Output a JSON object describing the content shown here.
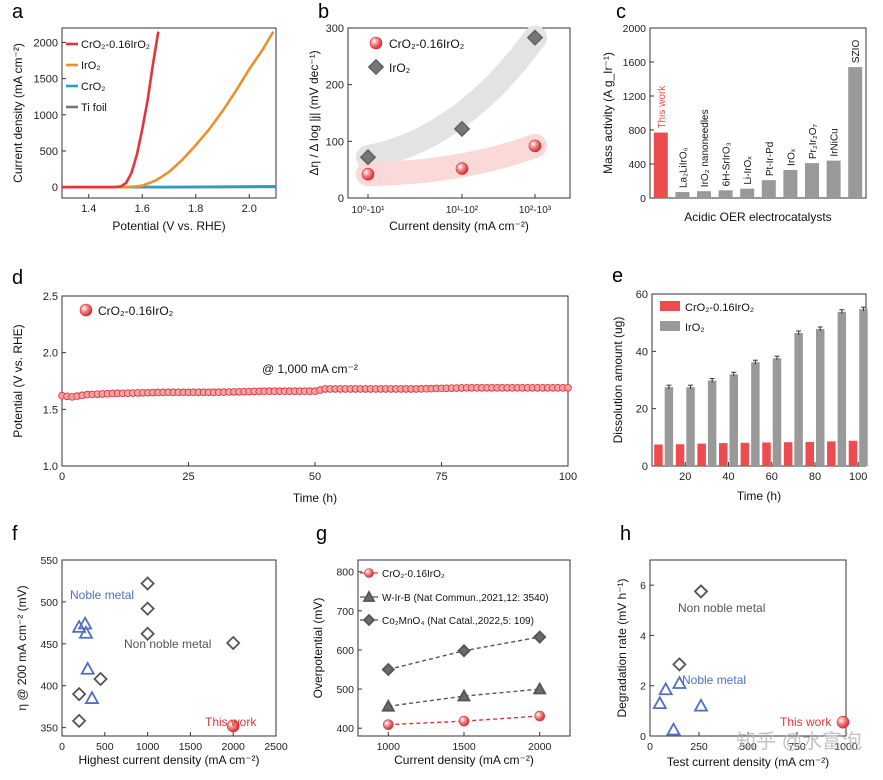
{
  "panels": {
    "a": {
      "letter": "a"
    },
    "b": {
      "letter": "b"
    },
    "c": {
      "letter": "c"
    },
    "d": {
      "letter": "d"
    },
    "e": {
      "letter": "e"
    },
    "f": {
      "letter": "f"
    },
    "g": {
      "letter": "g"
    },
    "h": {
      "letter": "h"
    }
  },
  "watermark": "知乎 @水富泡",
  "chart_data": [
    {
      "id": "a",
      "type": "line",
      "xlabel": "Potential (V vs. RHE)",
      "ylabel": "Current density (mA cm⁻²)",
      "xlim": [
        1.3,
        2.1
      ],
      "ylim": [
        -150,
        2200
      ],
      "xticks": [
        1.4,
        1.6,
        1.8,
        2.0
      ],
      "yticks": [
        0,
        500,
        1000,
        1500,
        2000
      ],
      "legend_position": "top-left",
      "series": [
        {
          "name": "CrO₂-0.16IrO₂",
          "color": "#e0353b",
          "x": [
            1.3,
            1.5,
            1.52,
            1.54,
            1.56,
            1.58,
            1.6,
            1.62,
            1.64,
            1.66
          ],
          "y": [
            0,
            0,
            10,
            60,
            200,
            450,
            800,
            1200,
            1700,
            2150
          ]
        },
        {
          "name": "IrO₂",
          "color": "#e8922e",
          "x": [
            1.3,
            1.55,
            1.6,
            1.65,
            1.7,
            1.75,
            1.8,
            1.85,
            1.9,
            1.95,
            2.0,
            2.05,
            2.09
          ],
          "y": [
            0,
            0,
            20,
            90,
            210,
            380,
            580,
            800,
            1050,
            1330,
            1630,
            1900,
            2150
          ]
        },
        {
          "name": "CrO₂",
          "color": "#2a9fc4",
          "x": [
            1.3,
            1.7,
            2.1
          ],
          "y": [
            0,
            2,
            12
          ]
        },
        {
          "name": "Ti foil",
          "color": "#777777",
          "x": [
            1.3,
            1.7,
            2.1
          ],
          "y": [
            0,
            0,
            4
          ]
        }
      ]
    },
    {
      "id": "b",
      "type": "scatter",
      "xlabel": "Current density (mA cm⁻²)",
      "ylabel": "Δη / Δ log |j| (mV dec⁻¹)",
      "categories": [
        "10⁰-10¹",
        "10¹-10²",
        "10²-10³"
      ],
      "ylim": [
        0,
        300
      ],
      "yticks": [
        0,
        100,
        200,
        300
      ],
      "legend_position": "top-left",
      "series": [
        {
          "name": "CrO₂-0.16IrO₂",
          "marker": "circle",
          "color": "#e0353b",
          "values": [
            42,
            52,
            92
          ]
        },
        {
          "name": "IrO₂",
          "marker": "diamond",
          "color": "#777777",
          "values": [
            72,
            122,
            283
          ]
        }
      ]
    },
    {
      "id": "c",
      "type": "bar",
      "xlabel": "Acidic OER electrocatalysts",
      "ylabel": "Mass activity (A g_Ir⁻¹)",
      "ylim": [
        0,
        2000
      ],
      "yticks": [
        0,
        400,
        800,
        1200,
        1600,
        2000
      ],
      "categories": [
        "This work",
        "La₂LiIrO₆",
        "IrO₂ nanoneedles",
        "6H-SrIrO₃",
        "Li-IrOₓ",
        "Pt-Ir-Pd",
        "IrOₓ",
        "Pr₂Ir₂O₇",
        "IrNiCu",
        "SZIO"
      ],
      "values": [
        770,
        70,
        80,
        90,
        110,
        210,
        330,
        410,
        440,
        1540
      ],
      "colors": [
        "#ee4b4e",
        "#999999",
        "#999999",
        "#999999",
        "#999999",
        "#999999",
        "#999999",
        "#999999",
        "#999999",
        "#999999"
      ]
    },
    {
      "id": "d",
      "type": "scatter",
      "xlabel": "Time (h)",
      "ylabel": "Potential (V vs. RHE)",
      "xlim": [
        0,
        100
      ],
      "ylim": [
        1.0,
        2.5
      ],
      "xticks": [
        0,
        25,
        50,
        75,
        100
      ],
      "yticks": [
        1.0,
        1.5,
        2.0,
        2.5
      ],
      "annotation": "@ 1,000 mA cm⁻²",
      "legend_position": "top-left",
      "series": [
        {
          "name": "CrO₂-0.16IrO₂",
          "color": "#e0353b",
          "x": [
            0,
            2,
            5,
            10,
            20,
            30,
            40,
            50,
            52,
            60,
            70,
            80,
            90,
            100
          ],
          "y": [
            1.62,
            1.61,
            1.63,
            1.64,
            1.65,
            1.65,
            1.66,
            1.66,
            1.68,
            1.68,
            1.68,
            1.69,
            1.69,
            1.69
          ]
        }
      ]
    },
    {
      "id": "e",
      "type": "bar",
      "xlabel": "Time (h)",
      "ylabel": "Dissolution amount (ug)",
      "ylim": [
        0,
        60
      ],
      "yticks": [
        0,
        20,
        40,
        60
      ],
      "xticks": [
        20,
        40,
        60,
        80,
        100
      ],
      "x": [
        10,
        20,
        30,
        40,
        50,
        60,
        70,
        80,
        90,
        100
      ],
      "legend_position": "top-left",
      "series": [
        {
          "name": "CrO₂-0.16IrO₂",
          "color": "#ee4b4e",
          "values": [
            7.5,
            7.6,
            7.8,
            8.0,
            8.1,
            8.2,
            8.3,
            8.4,
            8.6,
            8.8
          ]
        },
        {
          "name": "IrO₂",
          "color": "#999999",
          "values": [
            27.5,
            27.5,
            29.8,
            32.0,
            36.2,
            37.6,
            46.4,
            47.8,
            53.8,
            54.7
          ]
        }
      ]
    },
    {
      "id": "f",
      "type": "scatter",
      "xlabel": "Highest current density (mA cm⁻²)",
      "ylabel": "η @ 200 mA cm⁻² (mV)",
      "xlim": [
        0,
        2500
      ],
      "ylim": [
        340,
        550
      ],
      "xticks": [
        0,
        500,
        1000,
        1500,
        2000,
        2500
      ],
      "yticks": [
        350,
        400,
        450,
        500,
        550
      ],
      "annotations": [
        "Noble metal",
        "Non noble metal",
        "This work"
      ],
      "series": [
        {
          "marker": "triangle",
          "color": "#4f6fc4",
          "x": [
            200,
            270,
            280,
            300,
            350
          ],
          "y": [
            470,
            474,
            463,
            420,
            385
          ]
        },
        {
          "marker": "diamond",
          "color": "#555555",
          "x": [
            200,
            200,
            450,
            1000,
            1000,
            1000,
            2000
          ],
          "y": [
            358,
            390,
            408,
            522,
            492,
            462,
            451
          ]
        },
        {
          "marker": "circle",
          "color": "#e0353b",
          "x": [
            2000
          ],
          "y": [
            352
          ]
        }
      ]
    },
    {
      "id": "g",
      "type": "line",
      "xlabel": "Current density (mA cm⁻²)",
      "ylabel": "Overpotential (mV)",
      "xlim": [
        800,
        2200
      ],
      "ylim": [
        380,
        830
      ],
      "xticks": [
        1000,
        1500,
        2000
      ],
      "yticks": [
        400,
        500,
        600,
        700,
        800
      ],
      "legend_position": "top-left",
      "series": [
        {
          "name": "CrO₂-0.16IrO₂",
          "marker": "circle",
          "color": "#e0353b",
          "x": [
            1000,
            1500,
            2000
          ],
          "y": [
            409,
            418,
            431
          ]
        },
        {
          "name": "W-Ir-B (Nat Commun.,2021,12: 3540)",
          "marker": "triangle",
          "color": "#555555",
          "x": [
            1000,
            1500,
            2000
          ],
          "y": [
            456,
            482,
            500
          ]
        },
        {
          "name": "Co₂MnO₄ (Nat Catal.,2022,5: 109)",
          "marker": "diamond",
          "color": "#555555",
          "x": [
            1000,
            1500,
            2000
          ],
          "y": [
            550,
            598,
            633
          ]
        }
      ]
    },
    {
      "id": "h",
      "type": "scatter",
      "xlabel": "Test current density (mA cm⁻²)",
      "ylabel": "Degradation rate (mV h⁻¹)",
      "xlim": [
        0,
        1000
      ],
      "ylim": [
        0,
        7
      ],
      "xticks": [
        0,
        250,
        500,
        750,
        1000
      ],
      "yticks": [
        0,
        2,
        4,
        6
      ],
      "annotations": [
        "Non noble metal",
        "Noble metal",
        "This work"
      ],
      "series": [
        {
          "marker": "triangle",
          "color": "#4f6fc4",
          "x": [
            50,
            80,
            150,
            120,
            260
          ],
          "y": [
            1.3,
            1.85,
            2.1,
            0.25,
            1.2
          ]
        },
        {
          "marker": "diamond",
          "color": "#555555",
          "x": [
            150,
            260
          ],
          "y": [
            2.85,
            5.75
          ]
        },
        {
          "marker": "circle",
          "color": "#e0353b",
          "x": [
            1000
          ],
          "y": [
            0.55
          ]
        }
      ]
    }
  ]
}
